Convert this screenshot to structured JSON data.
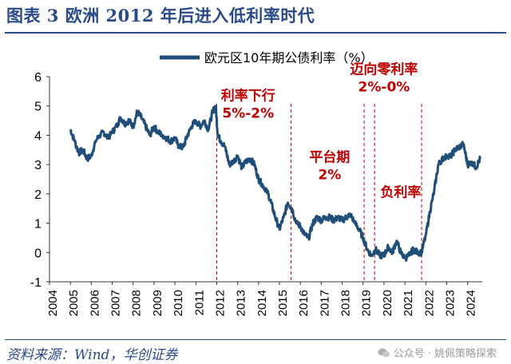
{
  "header": {
    "title": "图表 3  欧洲 2012 年后进入低利率时代"
  },
  "footer": {
    "source": "资料来源：Wind，华创证券",
    "watermark": "公众号 · 姚佩策略探索"
  },
  "chart_data": {
    "type": "line",
    "title": "",
    "legend": "欧元区10年期公债利率（%）",
    "legend_position": "top-center",
    "xlabel": "",
    "ylabel": "",
    "ylim": [
      -1,
      6
    ],
    "yticks": [
      "-1",
      "0",
      "1",
      "2",
      "3",
      "4",
      "5",
      "6"
    ],
    "xlim": [
      2004,
      2024.7
    ],
    "xticks": [
      "2004",
      "2005",
      "2006",
      "2007",
      "2008",
      "2009",
      "2010",
      "2011",
      "2012",
      "2013",
      "2014",
      "2015",
      "2016",
      "2017",
      "2018",
      "2019",
      "2020",
      "2021",
      "2022",
      "2023",
      "2024"
    ],
    "colors": {
      "line": "#1f4e79",
      "annotation": "#c00000",
      "axis": "#333333"
    },
    "series": [
      {
        "name": "欧元区10年期公债利率（%）",
        "x": [
          2005.0,
          2005.2,
          2005.4,
          2005.6,
          2005.8,
          2006.0,
          2006.2,
          2006.4,
          2006.6,
          2006.8,
          2007.0,
          2007.2,
          2007.4,
          2007.6,
          2007.8,
          2008.0,
          2008.2,
          2008.4,
          2008.6,
          2008.8,
          2009.0,
          2009.2,
          2009.4,
          2009.6,
          2009.8,
          2010.0,
          2010.2,
          2010.4,
          2010.6,
          2010.8,
          2011.0,
          2011.2,
          2011.4,
          2011.6,
          2011.8,
          2011.95,
          2012.05,
          2012.2,
          2012.4,
          2012.6,
          2012.8,
          2013.0,
          2013.2,
          2013.4,
          2013.6,
          2013.8,
          2014.0,
          2014.2,
          2014.4,
          2014.6,
          2014.8,
          2015.0,
          2015.2,
          2015.4,
          2015.6,
          2015.8,
          2016.0,
          2016.2,
          2016.4,
          2016.6,
          2016.8,
          2017.0,
          2017.2,
          2017.4,
          2017.6,
          2017.8,
          2018.0,
          2018.2,
          2018.4,
          2018.6,
          2018.8,
          2019.0,
          2019.2,
          2019.4,
          2019.6,
          2019.8,
          2020.0,
          2020.2,
          2020.4,
          2020.6,
          2020.8,
          2021.0,
          2021.2,
          2021.4,
          2021.6,
          2021.8,
          2022.0,
          2022.2,
          2022.4,
          2022.6,
          2022.8,
          2023.0,
          2023.2,
          2023.4,
          2023.6,
          2023.8,
          2024.0,
          2024.2,
          2024.4,
          2024.6
        ],
        "values": [
          4.2,
          3.8,
          3.4,
          3.5,
          3.2,
          3.3,
          3.8,
          4.0,
          4.1,
          3.9,
          4.1,
          4.3,
          4.6,
          4.4,
          4.5,
          4.3,
          4.8,
          4.6,
          4.3,
          4.0,
          4.3,
          4.1,
          4.0,
          3.9,
          3.8,
          3.9,
          3.6,
          3.6,
          4.0,
          4.3,
          4.5,
          4.3,
          4.5,
          4.2,
          4.8,
          5.0,
          4.0,
          3.8,
          3.6,
          3.0,
          3.1,
          3.3,
          2.9,
          3.1,
          3.2,
          3.0,
          2.5,
          2.3,
          2.1,
          1.7,
          1.2,
          0.8,
          1.2,
          1.7,
          1.5,
          1.0,
          0.9,
          0.6,
          0.5,
          1.0,
          1.2,
          1.1,
          1.2,
          1.2,
          1.1,
          1.2,
          1.1,
          1.2,
          1.3,
          1.0,
          0.8,
          0.5,
          0.1,
          -0.1,
          0.1,
          -0.1,
          -0.1,
          0.2,
          0.0,
          0.4,
          0.0,
          -0.2,
          -0.1,
          0.1,
          0.0,
          0.0,
          0.6,
          1.4,
          2.1,
          3.0,
          3.2,
          3.3,
          3.3,
          3.5,
          3.6,
          3.7,
          3.0,
          3.1,
          2.9,
          3.2
        ]
      }
    ],
    "reference_lines": [
      2012.0,
      2015.55,
      2019.05,
      2019.55,
      2021.8
    ],
    "annotations": [
      {
        "label": "利率下行",
        "x": 2013.5,
        "y": 5.2
      },
      {
        "label": "5%-2%",
        "x": 2013.5,
        "y": 4.6
      },
      {
        "label": "平台期",
        "x": 2017.4,
        "y": 3.1
      },
      {
        "label": "2%",
        "x": 2017.4,
        "y": 2.5
      },
      {
        "label": "迈向零利率",
        "x": 2020.0,
        "y": 6.1
      },
      {
        "label": "2%-0%",
        "x": 2020.0,
        "y": 5.5
      },
      {
        "label": "负利率",
        "x": 2020.8,
        "y": 1.9
      }
    ]
  }
}
